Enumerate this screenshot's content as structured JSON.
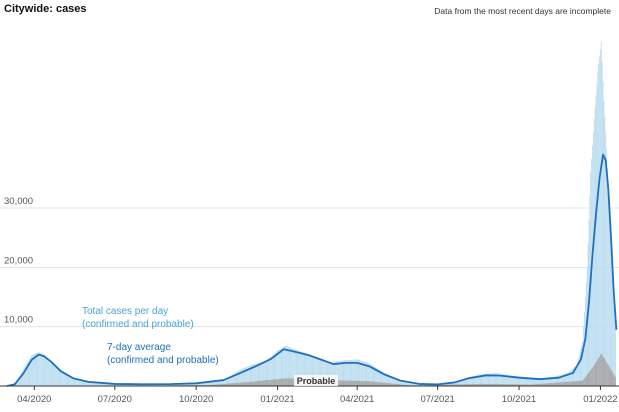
{
  "title": "Citywide: cases",
  "note": "Data from the most recent days are incomplete",
  "chart_data": {
    "type": "bar",
    "title": "Citywide: cases",
    "y_ticks": [
      10000,
      20000,
      30000
    ],
    "y_tick_labels": [
      "10,000",
      "20,000",
      "30,000"
    ],
    "ylim": [
      0,
      60000
    ],
    "x_ticks": [
      "2020-04-01",
      "2020-07-01",
      "2020-10-01",
      "2021-01-01",
      "2021-04-01",
      "2021-07-01",
      "2021-10-01",
      "2022-01-01"
    ],
    "x_tick_labels": [
      "04/2020",
      "07/2020",
      "10/2020",
      "01/2021",
      "04/2021",
      "07/2021",
      "10/2021",
      "01/2022"
    ],
    "xlim": [
      "2020-02-29",
      "2022-01-22"
    ],
    "grid": true,
    "series": [
      {
        "name": "Total cases per day (confirmed and probable)",
        "style": "bars",
        "color": "#b9dcef",
        "points": [
          [
            "2020-03-01",
            0
          ],
          [
            "2020-03-08",
            200
          ],
          [
            "2020-03-15",
            1500
          ],
          [
            "2020-03-22",
            3500
          ],
          [
            "2020-03-29",
            5200
          ],
          [
            "2020-04-05",
            5700
          ],
          [
            "2020-04-12",
            5400
          ],
          [
            "2020-04-19",
            4200
          ],
          [
            "2020-04-26",
            3000
          ],
          [
            "2020-05-10",
            1500
          ],
          [
            "2020-05-24",
            900
          ],
          [
            "2020-06-07",
            550
          ],
          [
            "2020-06-28",
            400
          ],
          [
            "2020-08-01",
            300
          ],
          [
            "2020-09-01",
            350
          ],
          [
            "2020-10-01",
            500
          ],
          [
            "2020-10-20",
            700
          ],
          [
            "2020-11-05",
            1300
          ],
          [
            "2020-11-20",
            2800
          ],
          [
            "2020-12-05",
            3700
          ],
          [
            "2020-12-20",
            4300
          ],
          [
            "2021-01-01",
            6000
          ],
          [
            "2021-01-10",
            6800
          ],
          [
            "2021-01-20",
            6200
          ],
          [
            "2021-02-01",
            5600
          ],
          [
            "2021-02-15",
            4800
          ],
          [
            "2021-03-01",
            4000
          ],
          [
            "2021-03-15",
            4300
          ],
          [
            "2021-04-01",
            4500
          ],
          [
            "2021-04-15",
            3800
          ],
          [
            "2021-05-01",
            2300
          ],
          [
            "2021-05-15",
            1200
          ],
          [
            "2021-06-01",
            400
          ],
          [
            "2021-07-01",
            300
          ],
          [
            "2021-07-20",
            700
          ],
          [
            "2021-08-05",
            1500
          ],
          [
            "2021-08-20",
            2000
          ],
          [
            "2021-09-05",
            2200
          ],
          [
            "2021-09-20",
            1800
          ],
          [
            "2021-10-10",
            1500
          ],
          [
            "2021-10-25",
            1300
          ],
          [
            "2021-11-10",
            1600
          ],
          [
            "2021-11-25",
            2200
          ],
          [
            "2021-12-05",
            3500
          ],
          [
            "2021-12-12",
            7500
          ],
          [
            "2021-12-17",
            20000
          ],
          [
            "2021-12-21",
            36000
          ],
          [
            "2021-12-25",
            45000
          ],
          [
            "2021-12-29",
            53000
          ],
          [
            "2022-01-02",
            58000
          ],
          [
            "2022-01-05",
            48000
          ],
          [
            "2022-01-08",
            40000
          ],
          [
            "2022-01-11",
            30000
          ],
          [
            "2022-01-14",
            20000
          ],
          [
            "2022-01-18",
            12000
          ]
        ]
      },
      {
        "name": "Probable",
        "style": "bars",
        "color": "#a6a6a6",
        "points": [
          [
            "2020-03-01",
            0
          ],
          [
            "2020-06-01",
            0
          ],
          [
            "2020-10-15",
            150
          ],
          [
            "2020-12-01",
            700
          ],
          [
            "2021-01-10",
            1300
          ],
          [
            "2021-03-01",
            1000
          ],
          [
            "2021-04-15",
            800
          ],
          [
            "2021-06-01",
            100
          ],
          [
            "2021-08-20",
            350
          ],
          [
            "2021-10-15",
            250
          ],
          [
            "2021-12-12",
            900
          ],
          [
            "2021-12-25",
            3500
          ],
          [
            "2022-01-02",
            5500
          ],
          [
            "2022-01-08",
            4000
          ],
          [
            "2022-01-18",
            1500
          ]
        ]
      },
      {
        "name": "7-day average (confirmed and probable)",
        "style": "line",
        "color": "#1f6fbf",
        "points": [
          [
            "2020-03-01",
            0
          ],
          [
            "2020-03-10",
            300
          ],
          [
            "2020-03-20",
            2200
          ],
          [
            "2020-03-29",
            4400
          ],
          [
            "2020-04-06",
            5300
          ],
          [
            "2020-04-12",
            5000
          ],
          [
            "2020-04-20",
            4100
          ],
          [
            "2020-05-01",
            2500
          ],
          [
            "2020-05-15",
            1300
          ],
          [
            "2020-06-01",
            700
          ],
          [
            "2020-07-01",
            350
          ],
          [
            "2020-08-01",
            300
          ],
          [
            "2020-09-01",
            320
          ],
          [
            "2020-10-01",
            450
          ],
          [
            "2020-11-01",
            1000
          ],
          [
            "2020-11-20",
            2200
          ],
          [
            "2020-12-10",
            3500
          ],
          [
            "2020-12-25",
            4600
          ],
          [
            "2021-01-08",
            6200
          ],
          [
            "2021-01-20",
            5800
          ],
          [
            "2021-02-05",
            5200
          ],
          [
            "2021-02-20",
            4400
          ],
          [
            "2021-03-05",
            3700
          ],
          [
            "2021-03-20",
            3900
          ],
          [
            "2021-04-01",
            3900
          ],
          [
            "2021-04-15",
            3300
          ],
          [
            "2021-05-01",
            2000
          ],
          [
            "2021-05-20",
            900
          ],
          [
            "2021-06-10",
            350
          ],
          [
            "2021-07-01",
            280
          ],
          [
            "2021-07-20",
            600
          ],
          [
            "2021-08-05",
            1300
          ],
          [
            "2021-08-25",
            1800
          ],
          [
            "2021-09-10",
            1750
          ],
          [
            "2021-10-01",
            1400
          ],
          [
            "2021-10-25",
            1150
          ],
          [
            "2021-11-15",
            1400
          ],
          [
            "2021-12-01",
            2200
          ],
          [
            "2021-12-10",
            4500
          ],
          [
            "2021-12-15",
            8000
          ],
          [
            "2021-12-19",
            14000
          ],
          [
            "2021-12-23",
            22000
          ],
          [
            "2021-12-27",
            29000
          ],
          [
            "2021-12-31",
            35000
          ],
          [
            "2022-01-04",
            39000
          ],
          [
            "2022-01-07",
            38000
          ],
          [
            "2022-01-10",
            33000
          ],
          [
            "2022-01-13",
            25000
          ],
          [
            "2022-01-16",
            16000
          ],
          [
            "2022-01-19",
            9500
          ]
        ]
      }
    ],
    "annotations": [
      {
        "series": "Total cases per day (confirmed and probable)",
        "lines": [
          "Total cases per day",
          "(confirmed and probable)"
        ],
        "anchor": "left"
      },
      {
        "series": "7-day average (confirmed and probable)",
        "lines": [
          "7-day average",
          "(confirmed and probable)"
        ],
        "anchor": "left"
      },
      {
        "series": "Probable",
        "lines": [
          "Probable"
        ],
        "anchor": "baseline"
      }
    ],
    "colors": {
      "total": "#b9dcef",
      "probable": "#a6a6a6",
      "average": "#1f6fbf",
      "annotation_total": "#4aa3d8"
    }
  }
}
